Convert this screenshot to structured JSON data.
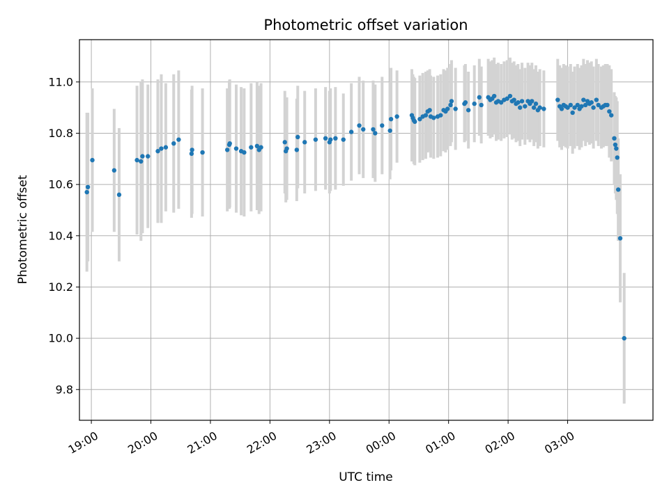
{
  "chart_data": {
    "type": "scatter",
    "title": "Photometric offset variation",
    "xlabel": "UTC time",
    "ylabel": "Photometric offset",
    "x_unit": "minutes after 18:00 UTC",
    "xlim": [
      48,
      626
    ],
    "ylim": [
      9.68,
      11.165
    ],
    "x_ticks": [
      {
        "value": 60,
        "label": "19:00"
      },
      {
        "value": 120,
        "label": "20:00"
      },
      {
        "value": 180,
        "label": "21:00"
      },
      {
        "value": 240,
        "label": "22:00"
      },
      {
        "value": 300,
        "label": "23:00"
      },
      {
        "value": 360,
        "label": "00:00"
      },
      {
        "value": 420,
        "label": "01:00"
      },
      {
        "value": 480,
        "label": "02:00"
      },
      {
        "value": 540,
        "label": "03:00"
      }
    ],
    "y_ticks": [
      9.8,
      10.0,
      10.2,
      10.4,
      10.6,
      10.8,
      11.0
    ],
    "grid": true,
    "point_color": "#1f77b4",
    "errorbar_color": "#d3d3d3",
    "series": [
      {
        "points": [
          [
            55.5,
            10.57,
            0.31
          ],
          [
            56.5,
            10.59,
            0.29
          ],
          [
            61,
            10.695,
            0.28
          ],
          [
            83,
            10.655,
            0.24
          ],
          [
            88,
            10.56,
            0.26
          ],
          [
            106,
            10.695,
            0.29
          ],
          [
            110,
            10.69,
            0.31
          ],
          [
            111.5,
            10.71,
            0.3
          ],
          [
            117,
            10.71,
            0.28
          ],
          [
            127,
            10.73,
            0.28
          ],
          [
            130.5,
            10.74,
            0.29
          ],
          [
            135,
            10.745,
            0.25
          ],
          [
            143,
            10.76,
            0.27
          ],
          [
            148,
            10.775,
            0.27
          ],
          [
            161,
            10.72,
            0.25
          ],
          [
            161.5,
            10.735,
            0.25
          ],
          [
            172,
            10.725,
            0.25
          ],
          [
            197,
            10.735,
            0.24
          ],
          [
            199,
            10.755,
            0.25
          ],
          [
            199.5,
            10.76,
            0.25
          ],
          [
            206,
            10.74,
            0.25
          ],
          [
            211,
            10.73,
            0.25
          ],
          [
            214,
            10.725,
            0.25
          ],
          [
            221,
            10.745,
            0.25
          ],
          [
            227,
            10.75,
            0.25
          ],
          [
            229,
            10.735,
            0.25
          ],
          [
            231,
            10.745,
            0.25
          ],
          [
            255,
            10.765,
            0.2
          ],
          [
            256,
            10.73,
            0.2
          ],
          [
            257,
            10.74,
            0.2
          ],
          [
            267,
            10.735,
            0.2
          ],
          [
            268,
            10.785,
            0.2
          ],
          [
            275,
            10.765,
            0.2
          ],
          [
            286,
            10.775,
            0.2
          ],
          [
            296,
            10.78,
            0.2
          ],
          [
            300,
            10.765,
            0.2
          ],
          [
            301,
            10.775,
            0.2
          ],
          [
            306,
            10.78,
            0.2
          ],
          [
            314,
            10.775,
            0.18
          ],
          [
            322,
            10.805,
            0.19
          ],
          [
            330,
            10.83,
            0.19
          ],
          [
            334,
            10.815,
            0.19
          ],
          [
            344,
            10.815,
            0.19
          ],
          [
            346,
            10.8,
            0.19
          ],
          [
            353,
            10.83,
            0.19
          ],
          [
            361,
            10.81,
            0.19
          ],
          [
            362,
            10.855,
            0.2
          ],
          [
            368,
            10.865,
            0.18
          ],
          [
            383,
            10.87,
            0.18
          ],
          [
            384,
            10.86,
            0.17
          ],
          [
            385,
            10.85,
            0.17
          ],
          [
            386,
            10.845,
            0.17
          ],
          [
            391,
            10.855,
            0.17
          ],
          [
            394,
            10.865,
            0.17
          ],
          [
            397,
            10.87,
            0.17
          ],
          [
            399,
            10.885,
            0.16
          ],
          [
            401,
            10.89,
            0.16
          ],
          [
            402,
            10.865,
            0.16
          ],
          [
            405,
            10.86,
            0.16
          ],
          [
            409,
            10.865,
            0.16
          ],
          [
            412,
            10.87,
            0.16
          ],
          [
            415,
            10.89,
            0.16
          ],
          [
            417,
            10.885,
            0.16
          ],
          [
            419,
            10.895,
            0.16
          ],
          [
            422,
            10.91,
            0.16
          ],
          [
            423,
            10.925,
            0.16
          ],
          [
            427,
            10.895,
            0.16
          ],
          [
            436,
            10.915,
            0.15
          ],
          [
            437,
            10.92,
            0.15
          ],
          [
            440,
            10.89,
            0.15
          ],
          [
            446,
            10.915,
            0.15
          ],
          [
            451,
            10.94,
            0.15
          ],
          [
            453,
            10.91,
            0.15
          ],
          [
            460,
            10.94,
            0.15
          ],
          [
            462,
            10.93,
            0.15
          ],
          [
            464,
            10.935,
            0.15
          ],
          [
            466,
            10.945,
            0.15
          ],
          [
            468,
            10.92,
            0.15
          ],
          [
            470,
            10.925,
            0.15
          ],
          [
            473,
            10.92,
            0.15
          ],
          [
            476,
            10.93,
            0.15
          ],
          [
            479,
            10.935,
            0.15
          ],
          [
            482,
            10.945,
            0.15
          ],
          [
            484,
            10.925,
            0.15
          ],
          [
            486,
            10.93,
            0.15
          ],
          [
            488,
            10.915,
            0.15
          ],
          [
            490,
            10.92,
            0.15
          ],
          [
            492,
            10.9,
            0.15
          ],
          [
            494,
            10.925,
            0.15
          ],
          [
            497,
            10.905,
            0.15
          ],
          [
            500,
            10.925,
            0.15
          ],
          [
            502,
            10.915,
            0.15
          ],
          [
            504,
            10.925,
            0.15
          ],
          [
            506,
            10.9,
            0.15
          ],
          [
            508,
            10.915,
            0.15
          ],
          [
            510,
            10.89,
            0.15
          ],
          [
            512,
            10.9,
            0.15
          ],
          [
            516,
            10.895,
            0.15
          ],
          [
            530,
            10.93,
            0.16
          ],
          [
            532,
            10.905,
            0.16
          ],
          [
            534,
            10.895,
            0.16
          ],
          [
            536,
            10.91,
            0.16
          ],
          [
            538,
            10.905,
            0.16
          ],
          [
            540,
            10.9,
            0.16
          ],
          [
            543,
            10.91,
            0.16
          ],
          [
            545,
            10.88,
            0.16
          ],
          [
            547,
            10.9,
            0.16
          ],
          [
            550,
            10.91,
            0.16
          ],
          [
            552,
            10.895,
            0.16
          ],
          [
            554,
            10.905,
            0.16
          ],
          [
            556,
            10.93,
            0.16
          ],
          [
            558,
            10.91,
            0.16
          ],
          [
            560,
            10.925,
            0.16
          ],
          [
            562,
            10.915,
            0.16
          ],
          [
            564,
            10.92,
            0.16
          ],
          [
            566,
            10.9,
            0.16
          ],
          [
            569,
            10.93,
            0.16
          ],
          [
            571,
            10.91,
            0.16
          ],
          [
            574,
            10.9,
            0.16
          ],
          [
            576,
            10.905,
            0.16
          ],
          [
            578,
            10.91,
            0.16
          ],
          [
            580,
            10.91,
            0.16
          ],
          [
            582,
            10.885,
            0.18
          ],
          [
            584,
            10.87,
            0.18
          ],
          [
            587,
            10.78,
            0.18
          ],
          [
            588,
            10.755,
            0.19
          ],
          [
            589,
            10.74,
            0.2
          ],
          [
            590,
            10.705,
            0.22
          ],
          [
            591,
            10.58,
            0.2
          ],
          [
            593,
            10.39,
            0.25
          ],
          [
            597,
            10.0,
            0.255
          ]
        ]
      }
    ]
  }
}
